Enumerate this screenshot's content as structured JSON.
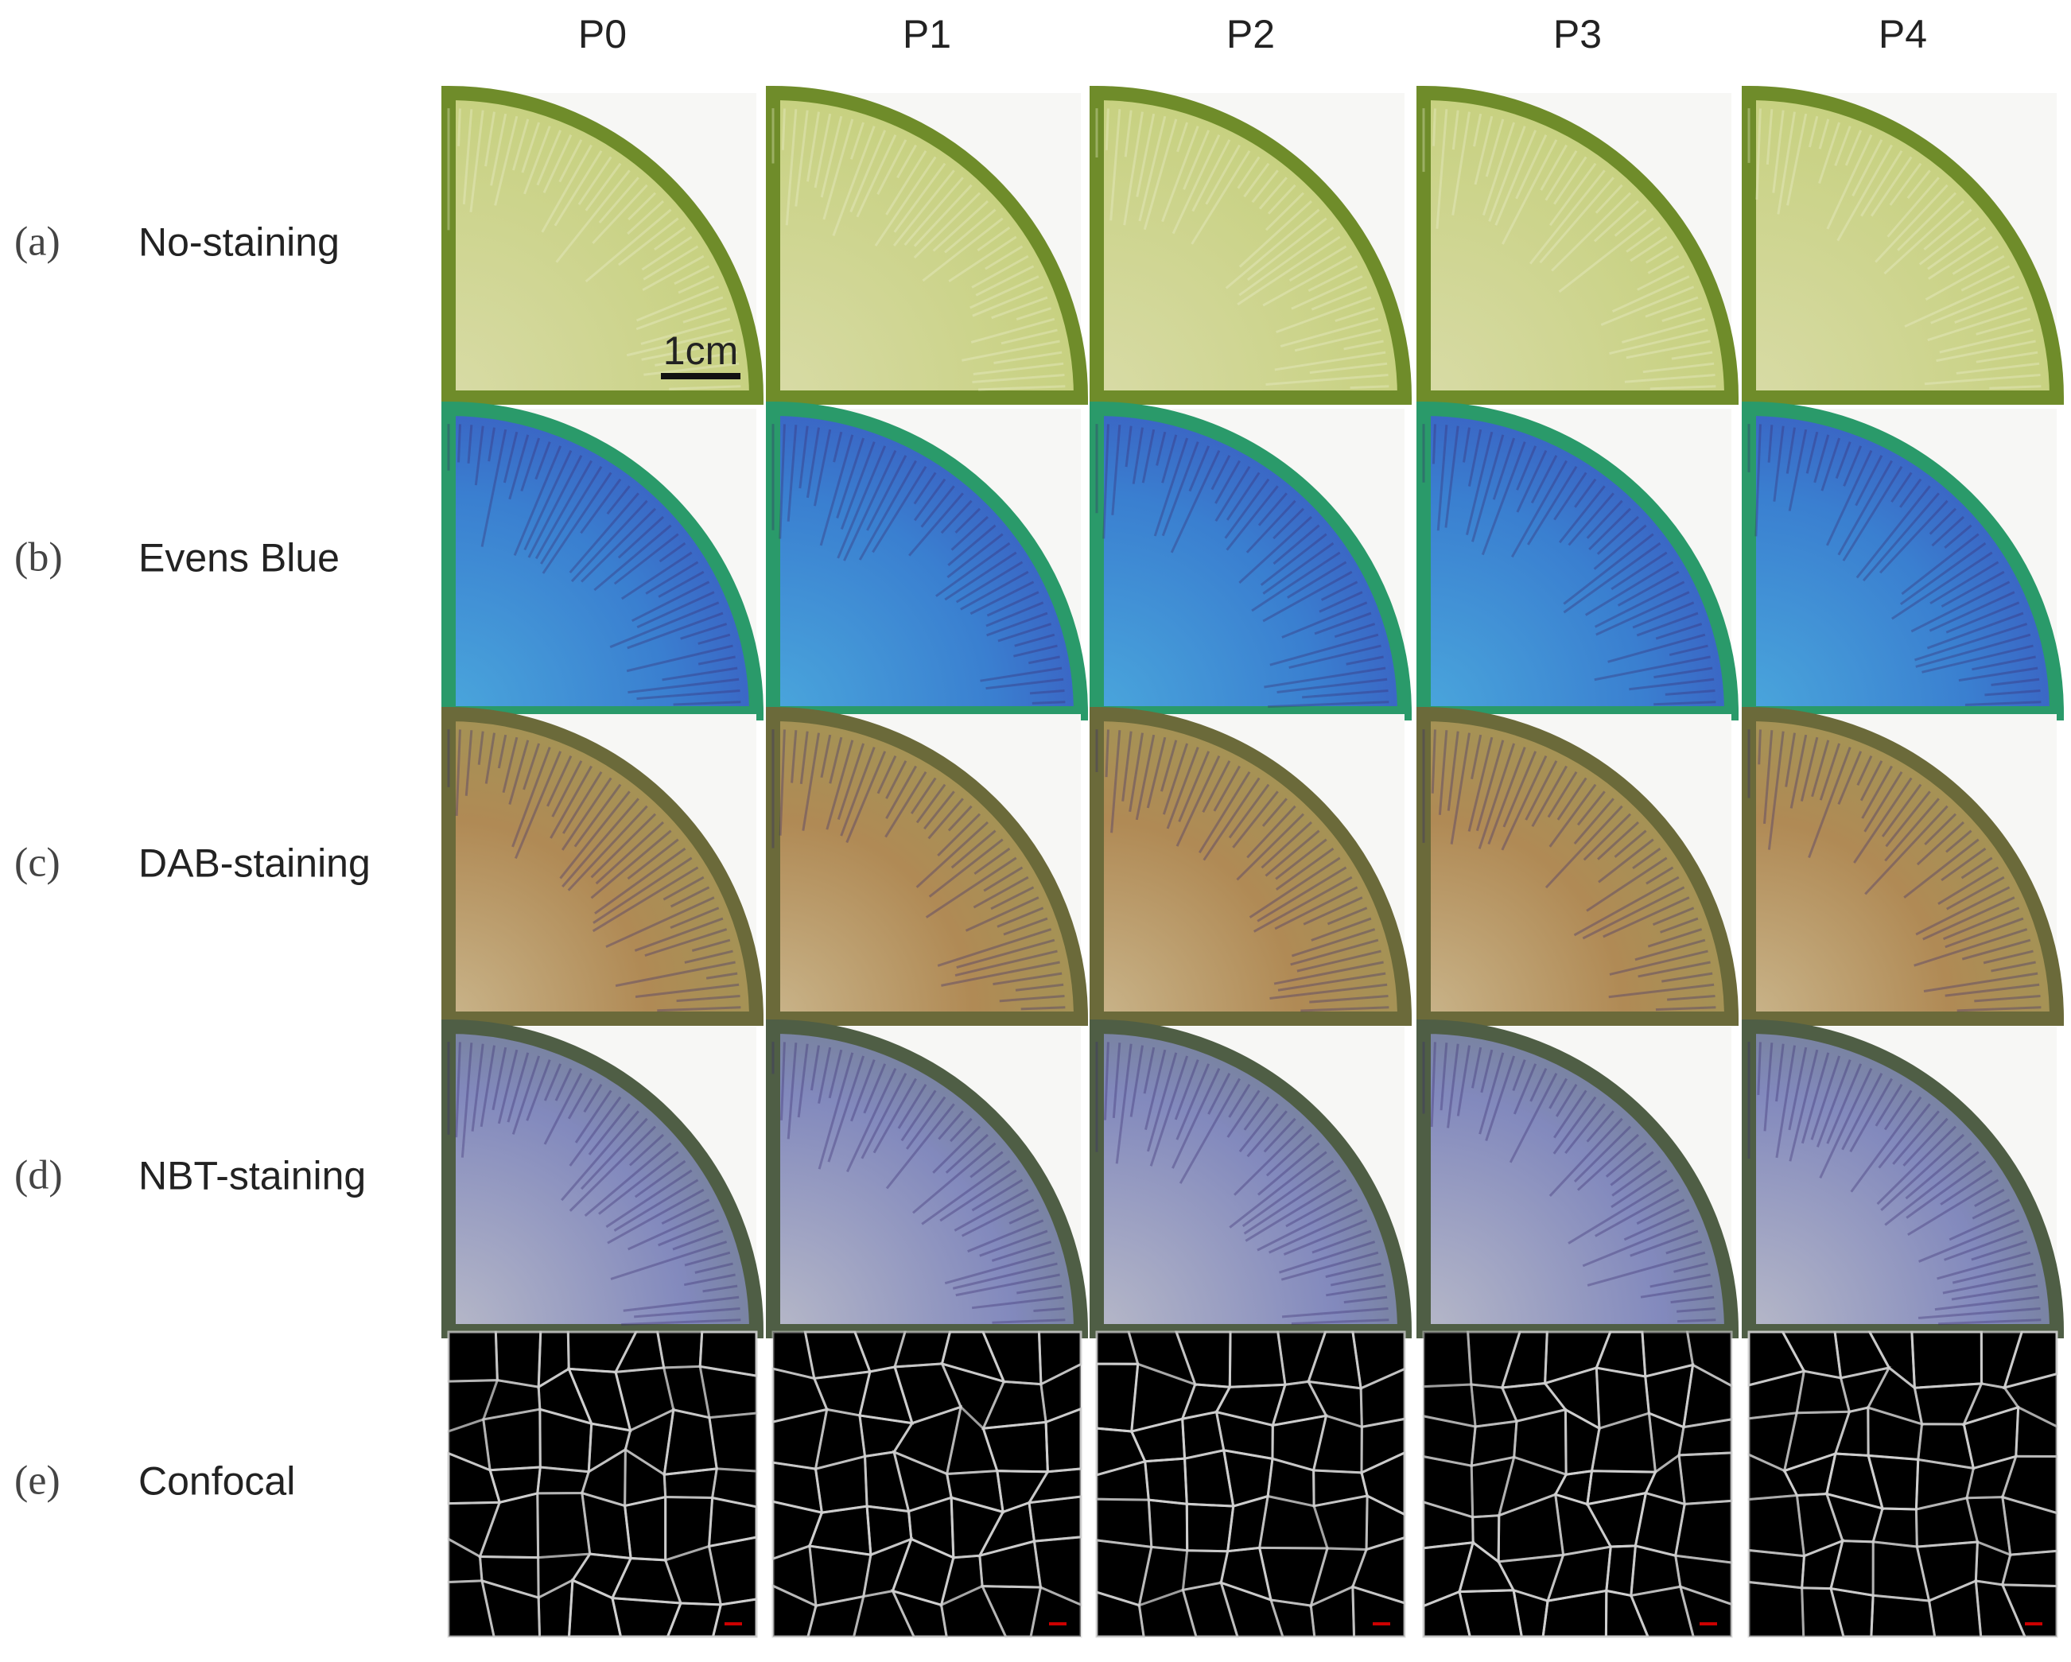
{
  "columns": [
    "P0",
    "P1",
    "P2",
    "P3",
    "P4"
  ],
  "rows": [
    {
      "letter": "(a)",
      "label": "No-staining"
    },
    {
      "letter": "(b)",
      "label": "Evens Blue"
    },
    {
      "letter": "(c)",
      "label": "DAB-staining"
    },
    {
      "letter": "(d)",
      "label": "NBT-staining"
    },
    {
      "letter": "(e)",
      "label": "Confocal"
    }
  ],
  "scale_bar": "1cm"
}
